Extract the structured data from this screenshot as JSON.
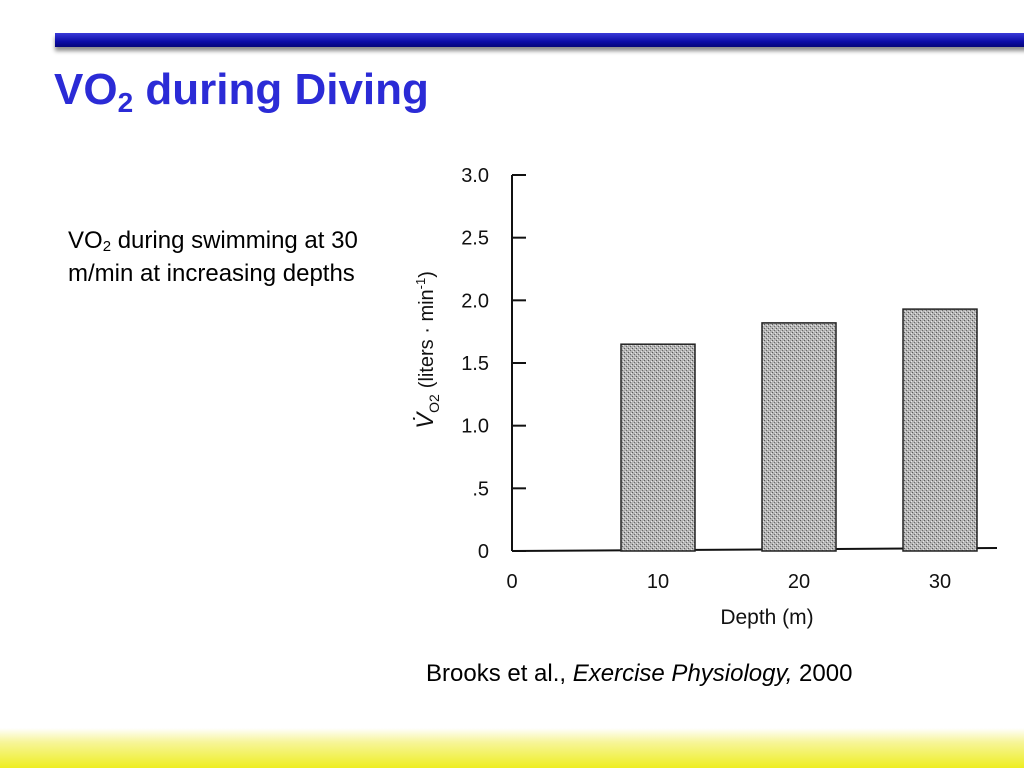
{
  "slide": {
    "title_main": "VO",
    "title_sub": "2",
    "title_rest": " during Diving",
    "description_main": "VO",
    "description_sub": "2",
    "description_rest": " during swimming at 30 m/min at increasing depths",
    "citation_authors": "Brooks et al., ",
    "citation_book": "Exercise Physiology,",
    "citation_year": " 2000"
  },
  "colors": {
    "title": "#2b2bd6",
    "top_bar": "#0d0da8",
    "bottom_band": "#eeee22",
    "bar_fill": "#a8a8a8"
  },
  "chart_data": {
    "type": "bar",
    "categories": [
      "10",
      "20",
      "30"
    ],
    "x_origin_label": "0",
    "values": [
      1.65,
      1.82,
      1.93
    ],
    "ylim": [
      0,
      3.0
    ],
    "yticks": [
      {
        "value": 0,
        "label": "0"
      },
      {
        "value": 0.5,
        "label": ".5"
      },
      {
        "value": 1.0,
        "label": "1.0"
      },
      {
        "value": 1.5,
        "label": "1.5"
      },
      {
        "value": 2.0,
        "label": "2.0"
      },
      {
        "value": 2.5,
        "label": "2.5"
      },
      {
        "value": 3.0,
        "label": "3.0"
      }
    ],
    "xlabel": "Depth (m)",
    "ylabel_symbol": "V̇",
    "ylabel_symbol_sub": "O2",
    "ylabel_units": "(liters · min",
    "ylabel_units_sup": "-1",
    "ylabel_close": ")",
    "grid": false,
    "legend": "none"
  }
}
